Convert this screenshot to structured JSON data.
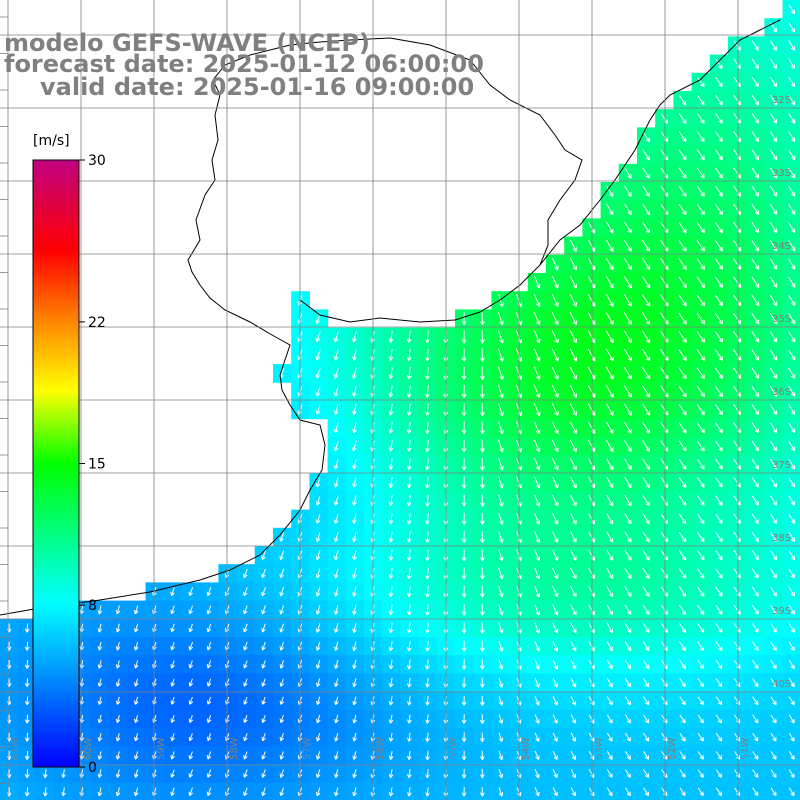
{
  "title": {
    "line1": "modelo GEFS-WAVE (NCEP)",
    "line2": "forecast date: 2025-01-12 06:00:00",
    "line3": "valid date: 2025-01-16 09:00:00"
  },
  "colorbar": {
    "units": "[m/s]",
    "min": 0,
    "max": 30,
    "ticks": [
      {
        "value": 30,
        "label": "30"
      },
      {
        "value": 22,
        "label": "22"
      },
      {
        "value": 15,
        "label": "15"
      },
      {
        "value": 8,
        "label": "8"
      },
      {
        "value": 0,
        "label": "0"
      }
    ],
    "colors": [
      "#0000ff",
      "#0090ff",
      "#00ffff",
      "#00ff00",
      "#ffff00",
      "#ff8000",
      "#ff0000",
      "#c00080"
    ]
  },
  "map": {
    "lon_labels": [
      "61W",
      "60W",
      "59W",
      "58W",
      "57W",
      "56W",
      "55W",
      "54W",
      "53W",
      "52W",
      "51W"
    ],
    "lat_labels": [
      "32S",
      "33S",
      "34S",
      "35S",
      "36S",
      "37S",
      "38S",
      "39S",
      "40S"
    ],
    "land_color": "#ffffff",
    "grid_color": "#808080"
  }
}
